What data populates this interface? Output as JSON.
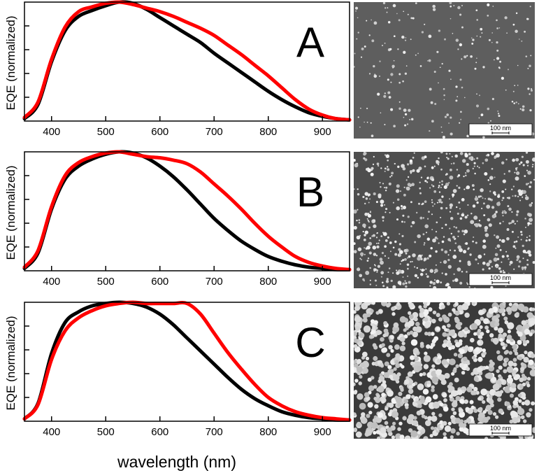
{
  "figure": {
    "xlabel": "wavelength (nm)",
    "scalebar_label": "100 nm"
  },
  "chart_data": [
    {
      "type": "line",
      "panel_label": "A",
      "ylabel": "EQE (normalized)",
      "xlim": [
        350,
        950
      ],
      "ylim": [
        0,
        1
      ],
      "x_ticks": [
        400,
        500,
        600,
        700,
        800,
        900
      ],
      "grid": false,
      "series": [
        {
          "color": "#000000",
          "x": [
            350,
            375,
            400,
            425,
            450,
            475,
            500,
            525,
            550,
            575,
            600,
            625,
            650,
            675,
            700,
            725,
            750,
            775,
            800,
            825,
            850,
            875,
            900,
            925,
            950
          ],
          "y": [
            0.02,
            0.14,
            0.5,
            0.76,
            0.88,
            0.93,
            0.97,
            1.0,
            0.99,
            0.94,
            0.87,
            0.8,
            0.73,
            0.66,
            0.57,
            0.49,
            0.41,
            0.33,
            0.25,
            0.18,
            0.12,
            0.07,
            0.04,
            0.02,
            0.01
          ]
        },
        {
          "color": "#ff0000",
          "x": [
            350,
            375,
            400,
            425,
            450,
            475,
            500,
            525,
            550,
            575,
            600,
            625,
            650,
            675,
            700,
            725,
            750,
            775,
            800,
            825,
            850,
            875,
            900,
            925,
            950
          ],
          "y": [
            0.03,
            0.16,
            0.52,
            0.79,
            0.92,
            0.96,
            0.99,
            1.0,
            0.98,
            0.95,
            0.92,
            0.88,
            0.83,
            0.78,
            0.72,
            0.64,
            0.56,
            0.47,
            0.38,
            0.28,
            0.18,
            0.1,
            0.05,
            0.02,
            0.01
          ]
        }
      ]
    },
    {
      "type": "line",
      "panel_label": "B",
      "ylabel": "EQE (normalized)",
      "xlim": [
        350,
        950
      ],
      "ylim": [
        0,
        1
      ],
      "x_ticks": [
        400,
        500,
        600,
        700,
        800,
        900
      ],
      "grid": false,
      "series": [
        {
          "color": "#000000",
          "x": [
            350,
            375,
            400,
            425,
            450,
            475,
            500,
            525,
            550,
            575,
            600,
            625,
            650,
            675,
            700,
            725,
            750,
            775,
            800,
            825,
            850,
            875,
            900,
            925,
            950
          ],
          "y": [
            0.02,
            0.15,
            0.52,
            0.77,
            0.88,
            0.94,
            0.98,
            1.0,
            0.99,
            0.95,
            0.88,
            0.79,
            0.68,
            0.56,
            0.44,
            0.34,
            0.25,
            0.18,
            0.12,
            0.08,
            0.05,
            0.03,
            0.02,
            0.01,
            0.01
          ]
        },
        {
          "color": "#ff0000",
          "x": [
            350,
            375,
            400,
            425,
            450,
            475,
            500,
            525,
            550,
            575,
            600,
            625,
            650,
            675,
            700,
            725,
            750,
            775,
            800,
            825,
            850,
            875,
            900,
            925,
            950
          ],
          "y": [
            0.03,
            0.17,
            0.54,
            0.8,
            0.91,
            0.96,
            0.99,
            1.0,
            0.98,
            0.96,
            0.95,
            0.93,
            0.9,
            0.83,
            0.73,
            0.63,
            0.52,
            0.4,
            0.29,
            0.2,
            0.12,
            0.07,
            0.04,
            0.02,
            0.01
          ]
        }
      ]
    },
    {
      "type": "line",
      "panel_label": "C",
      "ylabel": "EQE (normalized)",
      "xlim": [
        350,
        950
      ],
      "ylim": [
        0,
        1
      ],
      "x_ticks": [
        400,
        500,
        600,
        700,
        800,
        900
      ],
      "grid": false,
      "series": [
        {
          "color": "#000000",
          "x": [
            350,
            375,
            400,
            425,
            450,
            475,
            500,
            525,
            550,
            575,
            600,
            625,
            650,
            675,
            700,
            725,
            750,
            775,
            800,
            825,
            850,
            875,
            900,
            925,
            950
          ],
          "y": [
            0.02,
            0.15,
            0.57,
            0.83,
            0.92,
            0.97,
            0.99,
            1.0,
            0.99,
            0.96,
            0.9,
            0.81,
            0.7,
            0.59,
            0.48,
            0.37,
            0.27,
            0.19,
            0.13,
            0.08,
            0.05,
            0.03,
            0.02,
            0.01,
            0.01
          ]
        },
        {
          "color": "#ff0000",
          "x": [
            350,
            375,
            400,
            425,
            450,
            475,
            500,
            525,
            550,
            575,
            600,
            625,
            650,
            675,
            700,
            725,
            750,
            775,
            800,
            825,
            850,
            875,
            900,
            925,
            950
          ],
          "y": [
            0.02,
            0.14,
            0.52,
            0.76,
            0.87,
            0.93,
            0.97,
            0.99,
            1.0,
            0.99,
            0.99,
            0.99,
            0.99,
            0.9,
            0.74,
            0.58,
            0.44,
            0.31,
            0.2,
            0.13,
            0.08,
            0.05,
            0.03,
            0.02,
            0.01
          ]
        }
      ]
    }
  ]
}
